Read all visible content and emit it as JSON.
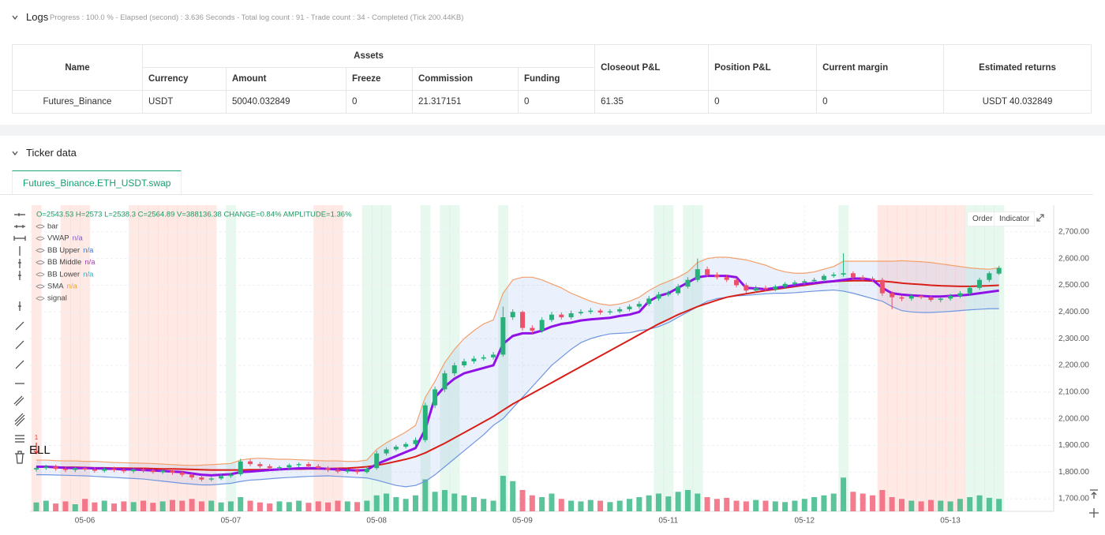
{
  "logs": {
    "title": "Logs",
    "summary": "Progress : 100.0 % - Elapsed (second) : 3.636 Seconds - Total log count : 91 - Trade count : 34 - Completed (Tick 200.44KB)"
  },
  "table": {
    "headers": [
      "Name",
      "Assets",
      "Closeout P&L",
      "Position P&L",
      "Current margin",
      "Estimated returns"
    ],
    "subheaders": [
      "Currency",
      "Amount",
      "Freeze",
      "Commission",
      "Funding"
    ],
    "rows": [
      [
        "Futures_Binance",
        "USDT",
        "50040.032849",
        "0",
        "21.317151",
        "0",
        "61.35",
        "0",
        "0",
        "USDT 40.032849"
      ]
    ]
  },
  "ticker": {
    "title": "Ticker data",
    "tab": "Futures_Binance.ETH_USDT.swap"
  },
  "toolbar": {
    "buttons": [
      "Order",
      "Indicator"
    ]
  },
  "chart_data": {
    "type": "candlestick",
    "info": "O=2543.53 H=2573 L=2538.3 C=2564.89 V=388136.38 CHANGE=0.84% AMPLITUDE=1.36%",
    "legend": [
      {
        "name": "bar"
      },
      {
        "name": "VWAP",
        "value": "n/a",
        "color": "#7b5cd6"
      },
      {
        "name": "BB Upper",
        "value": "n/a",
        "color": "#3a7bd5"
      },
      {
        "name": "BB Middle",
        "value": "n/a",
        "color": "#b03ac0"
      },
      {
        "name": "BB Lower",
        "value": "n/a",
        "color": "#2ab0c8"
      },
      {
        "name": "SMA",
        "value": "n/a",
        "color": "#f0a030"
      },
      {
        "name": "signal"
      }
    ],
    "marker": {
      "count": "1",
      "label": "SELL",
      "color": "#e53935"
    },
    "categories": [
      null,
      null,
      null,
      null,
      null,
      "05-06",
      null,
      null,
      null,
      null,
      null,
      null,
      null,
      null,
      null,
      null,
      null,
      null,
      null,
      null,
      "05-07",
      null,
      null,
      null,
      null,
      null,
      null,
      null,
      null,
      null,
      null,
      null,
      null,
      null,
      null,
      "05-08",
      null,
      null,
      null,
      null,
      null,
      null,
      null,
      null,
      null,
      null,
      null,
      null,
      null,
      null,
      "05-09",
      null,
      null,
      null,
      null,
      null,
      null,
      null,
      null,
      null,
      null,
      null,
      null,
      null,
      null,
      "05-11",
      null,
      null,
      null,
      null,
      null,
      null,
      null,
      null,
      null,
      null,
      null,
      null,
      null,
      "05-12",
      null,
      null,
      null,
      null,
      null,
      null,
      null,
      null,
      null,
      null,
      null,
      null,
      null,
      null,
      "05-13",
      null,
      null,
      null,
      null,
      null
    ],
    "open": [
      1810,
      1815,
      1820,
      1812,
      1808,
      1815,
      1810,
      1805,
      1812,
      1808,
      1803,
      1810,
      1806,
      1800,
      1805,
      1798,
      1790,
      1780,
      1772,
      1776,
      1785,
      1792,
      1840,
      1830,
      1822,
      1815,
      1818,
      1826,
      1830,
      1822,
      1815,
      1808,
      1802,
      1806,
      1800,
      1815,
      1870,
      1885,
      1895,
      1905,
      1920,
      2050,
      2110,
      2170,
      2200,
      2215,
      2225,
      2230,
      2240,
      2380,
      2400,
      2340,
      2330,
      2370,
      2390,
      2380,
      2395,
      2400,
      2405,
      2398,
      2402,
      2410,
      2420,
      2430,
      2450,
      2465,
      2470,
      2495,
      2520,
      2560,
      2540,
      2530,
      2520,
      2500,
      2480,
      2490,
      2485,
      2495,
      2505,
      2510,
      2515,
      2520,
      2535,
      2540,
      2545,
      2530,
      2525,
      2520,
      2470,
      2455,
      2450,
      2460,
      2455,
      2445,
      2450,
      2460,
      2470,
      2490,
      2520,
      2543.53
    ],
    "high": [
      1822,
      1827,
      1828,
      1820,
      1822,
      1822,
      1818,
      1818,
      1820,
      1815,
      1815,
      1817,
      1812,
      1810,
      1812,
      1805,
      1796,
      1788,
      1782,
      1792,
      1797,
      1850,
      1848,
      1838,
      1830,
      1824,
      1832,
      1836,
      1838,
      1830,
      1822,
      1815,
      1812,
      1812,
      1820,
      1880,
      1892,
      1902,
      1912,
      1930,
      2060,
      2120,
      2180,
      2210,
      2225,
      2235,
      2240,
      2250,
      2420,
      2410,
      2405,
      2350,
      2380,
      2400,
      2398,
      2405,
      2410,
      2415,
      2412,
      2410,
      2418,
      2428,
      2440,
      2460,
      2475,
      2480,
      2505,
      2530,
      2600,
      2570,
      2548,
      2540,
      2528,
      2508,
      2498,
      2498,
      2502,
      2512,
      2518,
      2522,
      2528,
      2542,
      2548,
      2620,
      2552,
      2538,
      2532,
      2528,
      2478,
      2462,
      2468,
      2465,
      2460,
      2455,
      2468,
      2478,
      2498,
      2528,
      2552,
      2573
    ],
    "low": [
      1802,
      1808,
      1805,
      1800,
      1800,
      1803,
      1798,
      1798,
      1800,
      1796,
      1796,
      1798,
      1794,
      1793,
      1790,
      1782,
      1772,
      1765,
      1765,
      1770,
      1778,
      1785,
      1822,
      1815,
      1808,
      1808,
      1810,
      1818,
      1815,
      1808,
      1800,
      1795,
      1795,
      1792,
      1795,
      1808,
      1862,
      1878,
      1888,
      1898,
      1912,
      2040,
      2100,
      2160,
      2192,
      2206,
      2218,
      2222,
      2232,
      2370,
      2330,
      2318,
      2322,
      2362,
      2372,
      2372,
      2388,
      2392,
      2390,
      2390,
      2395,
      2402,
      2412,
      2422,
      2442,
      2458,
      2462,
      2488,
      2512,
      2532,
      2522,
      2512,
      2492,
      2470,
      2472,
      2478,
      2478,
      2488,
      2498,
      2502,
      2508,
      2512,
      2528,
      2532,
      2522,
      2518,
      2512,
      2460,
      2410,
      2440,
      2442,
      2448,
      2438,
      2436,
      2442,
      2452,
      2462,
      2482,
      2512,
      2538.3
    ],
    "close": [
      1815,
      1820,
      1812,
      1808,
      1815,
      1810,
      1805,
      1812,
      1808,
      1803,
      1810,
      1806,
      1800,
      1805,
      1798,
      1790,
      1780,
      1772,
      1776,
      1785,
      1790,
      1840,
      1830,
      1822,
      1815,
      1818,
      1826,
      1830,
      1822,
      1815,
      1808,
      1802,
      1806,
      1800,
      1812,
      1870,
      1885,
      1895,
      1905,
      1920,
      2050,
      2110,
      2170,
      2200,
      2215,
      2225,
      2230,
      2240,
      2380,
      2400,
      2340,
      2330,
      2370,
      2390,
      2380,
      2395,
      2400,
      2405,
      2398,
      2402,
      2410,
      2420,
      2430,
      2450,
      2465,
      2470,
      2495,
      2520,
      2560,
      2540,
      2530,
      2520,
      2500,
      2480,
      2490,
      2485,
      2495,
      2505,
      2510,
      2515,
      2520,
      2535,
      2540,
      2545,
      2530,
      2525,
      2520,
      2470,
      2455,
      2450,
      2460,
      2455,
      2445,
      2450,
      2460,
      2470,
      2490,
      2520,
      2545,
      2564.89
    ],
    "volume": [
      25,
      30,
      22,
      28,
      20,
      35,
      25,
      30,
      22,
      28,
      26,
      30,
      24,
      28,
      32,
      30,
      35,
      28,
      30,
      25,
      28,
      40,
      30,
      25,
      22,
      28,
      26,
      30,
      24,
      28,
      25,
      30,
      28,
      26,
      30,
      45,
      50,
      40,
      35,
      45,
      90,
      55,
      60,
      50,
      45,
      40,
      35,
      30,
      100,
      85,
      60,
      45,
      40,
      50,
      35,
      30,
      28,
      32,
      30,
      26,
      30,
      35,
      40,
      45,
      50,
      42,
      55,
      60,
      50,
      40,
      35,
      38,
      30,
      28,
      32,
      30,
      28,
      26,
      30,
      35,
      40,
      45,
      50,
      95,
      55,
      50,
      45,
      60,
      40,
      35,
      30,
      28,
      32,
      30,
      28,
      35,
      40,
      45,
      38,
      35
    ],
    "signal": [
      -1,
      0,
      0,
      -1,
      -1,
      -1,
      0,
      0,
      0,
      0,
      -1,
      -1,
      -1,
      -1,
      -1,
      -1,
      -1,
      -1,
      -1,
      0,
      1,
      0,
      0,
      0,
      0,
      0,
      0,
      0,
      0,
      -1,
      -1,
      -1,
      0,
      0,
      1,
      1,
      1,
      0,
      0,
      0,
      1,
      0,
      1,
      1,
      0,
      0,
      0,
      0,
      1,
      0,
      0,
      0,
      0,
      0,
      0,
      0,
      0,
      0,
      0,
      0,
      0,
      0,
      0,
      0,
      1,
      1,
      0,
      1,
      1,
      0,
      0,
      0,
      0,
      0,
      0,
      0,
      0,
      0,
      0,
      0,
      0,
      0,
      0,
      1,
      0,
      0,
      0,
      -1,
      -1,
      -1,
      -1,
      -1,
      -1,
      -1,
      -1,
      -1,
      1,
      1,
      1,
      1
    ],
    "up_color": "#26b07a",
    "down_color": "#ef5069",
    "series": [
      {
        "name": "BB Upper",
        "color": "#f4a06a",
        "values": [
          1845,
          1845,
          1843,
          1842,
          1842,
          1840,
          1840,
          1838,
          1836,
          1835,
          1834,
          1833,
          1832,
          1830,
          1828,
          1826,
          1825,
          1826,
          1828,
          1830,
          1832,
          1845,
          1850,
          1852,
          1850,
          1848,
          1848,
          1846,
          1845,
          1843,
          1842,
          1842,
          1840,
          1840,
          1845,
          1885,
          1910,
          1930,
          1950,
          1975,
          2080,
          2140,
          2210,
          2260,
          2300,
          2330,
          2355,
          2370,
          2470,
          2520,
          2530,
          2530,
          2520,
          2505,
          2490,
          2470,
          2455,
          2440,
          2430,
          2425,
          2430,
          2440,
          2455,
          2480,
          2500,
          2515,
          2530,
          2550,
          2585,
          2600,
          2605,
          2605,
          2600,
          2595,
          2585,
          2575,
          2560,
          2550,
          2545,
          2545,
          2550,
          2560,
          2570,
          2590,
          2590,
          2590,
          2590,
          2590,
          2590,
          2592,
          2590,
          2588,
          2585,
          2580,
          2575,
          2570,
          2565,
          2562,
          2560,
          2565
        ]
      },
      {
        "name": "BB Lower",
        "color": "#6f95e0",
        "values": [
          1790,
          1790,
          1789,
          1788,
          1787,
          1786,
          1784,
          1782,
          1780,
          1778,
          1776,
          1774,
          1770,
          1766,
          1762,
          1758,
          1755,
          1752,
          1752,
          1755,
          1758,
          1765,
          1770,
          1772,
          1775,
          1778,
          1780,
          1782,
          1784,
          1785,
          1786,
          1784,
          1782,
          1780,
          1778,
          1770,
          1760,
          1750,
          1745,
          1750,
          1765,
          1790,
          1820,
          1850,
          1880,
          1910,
          1940,
          1975,
          2000,
          2040,
          2080,
          2120,
          2160,
          2200,
          2230,
          2260,
          2285,
          2300,
          2310,
          2318,
          2320,
          2322,
          2330,
          2335,
          2345,
          2360,
          2380,
          2400,
          2420,
          2440,
          2450,
          2455,
          2460,
          2462,
          2465,
          2468,
          2470,
          2470,
          2472,
          2475,
          2478,
          2480,
          2482,
          2478,
          2470,
          2460,
          2450,
          2440,
          2420,
          2405,
          2400,
          2398,
          2398,
          2400,
          2402,
          2405,
          2408,
          2410,
          2412,
          2412
        ]
      },
      {
        "name": "SMA",
        "color": "#d91e18",
        "width": 2,
        "values": [
          1820,
          1820,
          1819,
          1818,
          1818,
          1817,
          1816,
          1816,
          1815,
          1815,
          1814,
          1814,
          1813,
          1812,
          1812,
          1811,
          1810,
          1809,
          1808,
          1808,
          1808,
          1808,
          1809,
          1809,
          1810,
          1810,
          1811,
          1811,
          1812,
          1812,
          1813,
          1814,
          1815,
          1817,
          1820,
          1825,
          1832,
          1840,
          1848,
          1858,
          1872,
          1890,
          1908,
          1928,
          1948,
          1968,
          1988,
          2008,
          2032,
          2055,
          2075,
          2095,
          2115,
          2135,
          2155,
          2175,
          2195,
          2215,
          2235,
          2255,
          2275,
          2295,
          2315,
          2335,
          2355,
          2372,
          2390,
          2405,
          2420,
          2432,
          2444,
          2455,
          2462,
          2468,
          2474,
          2480,
          2485,
          2490,
          2495,
          2500,
          2505,
          2510,
          2514,
          2516,
          2517,
          2517,
          2516,
          2515,
          2512,
          2508,
          2505,
          2503,
          2500,
          2498,
          2497,
          2496,
          2496,
          2497,
          2498,
          2500
        ]
      },
      {
        "name": "VWAP",
        "color": "#9012e6",
        "width": 3,
        "values": [
          1820,
          1820,
          1818,
          1816,
          1815,
          1815,
          1814,
          1813,
          1812,
          1810,
          1810,
          1808,
          1806,
          1804,
          1802,
          1800,
          1795,
          1790,
          1788,
          1790,
          1792,
          1800,
          1802,
          1805,
          1808,
          1810,
          1812,
          1814,
          1815,
          1814,
          1812,
          1810,
          1808,
          1806,
          1808,
          1830,
          1845,
          1860,
          1875,
          1890,
          1960,
          2080,
          2120,
          2150,
          2170,
          2180,
          2190,
          2200,
          2280,
          2310,
          2320,
          2320,
          2330,
          2345,
          2355,
          2360,
          2368,
          2372,
          2375,
          2378,
          2385,
          2390,
          2400,
          2440,
          2460,
          2470,
          2490,
          2510,
          2530,
          2535,
          2535,
          2535,
          2530,
          2490,
          2488,
          2485,
          2490,
          2495,
          2500,
          2505,
          2508,
          2512,
          2515,
          2520,
          2525,
          2525,
          2520,
          2490,
          2470,
          2465,
          2462,
          2460,
          2458,
          2458,
          2460,
          2462,
          2465,
          2470,
          2475,
          2480
        ]
      }
    ],
    "band_fill": "rgba(90,140,230,0.12)",
    "ylim": [
      1653,
      2800
    ],
    "yticks": [
      {
        "value": 1700,
        "label": "1,700.00"
      },
      {
        "value": 1800,
        "label": "1,800.00"
      },
      {
        "value": 1900,
        "label": "1,900.00"
      },
      {
        "value": 2000,
        "label": "2,000.00"
      },
      {
        "value": 2100,
        "label": "2,100.00"
      },
      {
        "value": 2200,
        "label": "2,200.00"
      },
      {
        "value": 2300,
        "label": "2,300.00"
      },
      {
        "value": 2400,
        "label": "2,400.00"
      },
      {
        "value": 2500,
        "label": "2,500.00"
      },
      {
        "value": 2600,
        "label": "2,600.00"
      },
      {
        "value": 2700,
        "label": "2,700.00"
      }
    ],
    "grid": true
  }
}
